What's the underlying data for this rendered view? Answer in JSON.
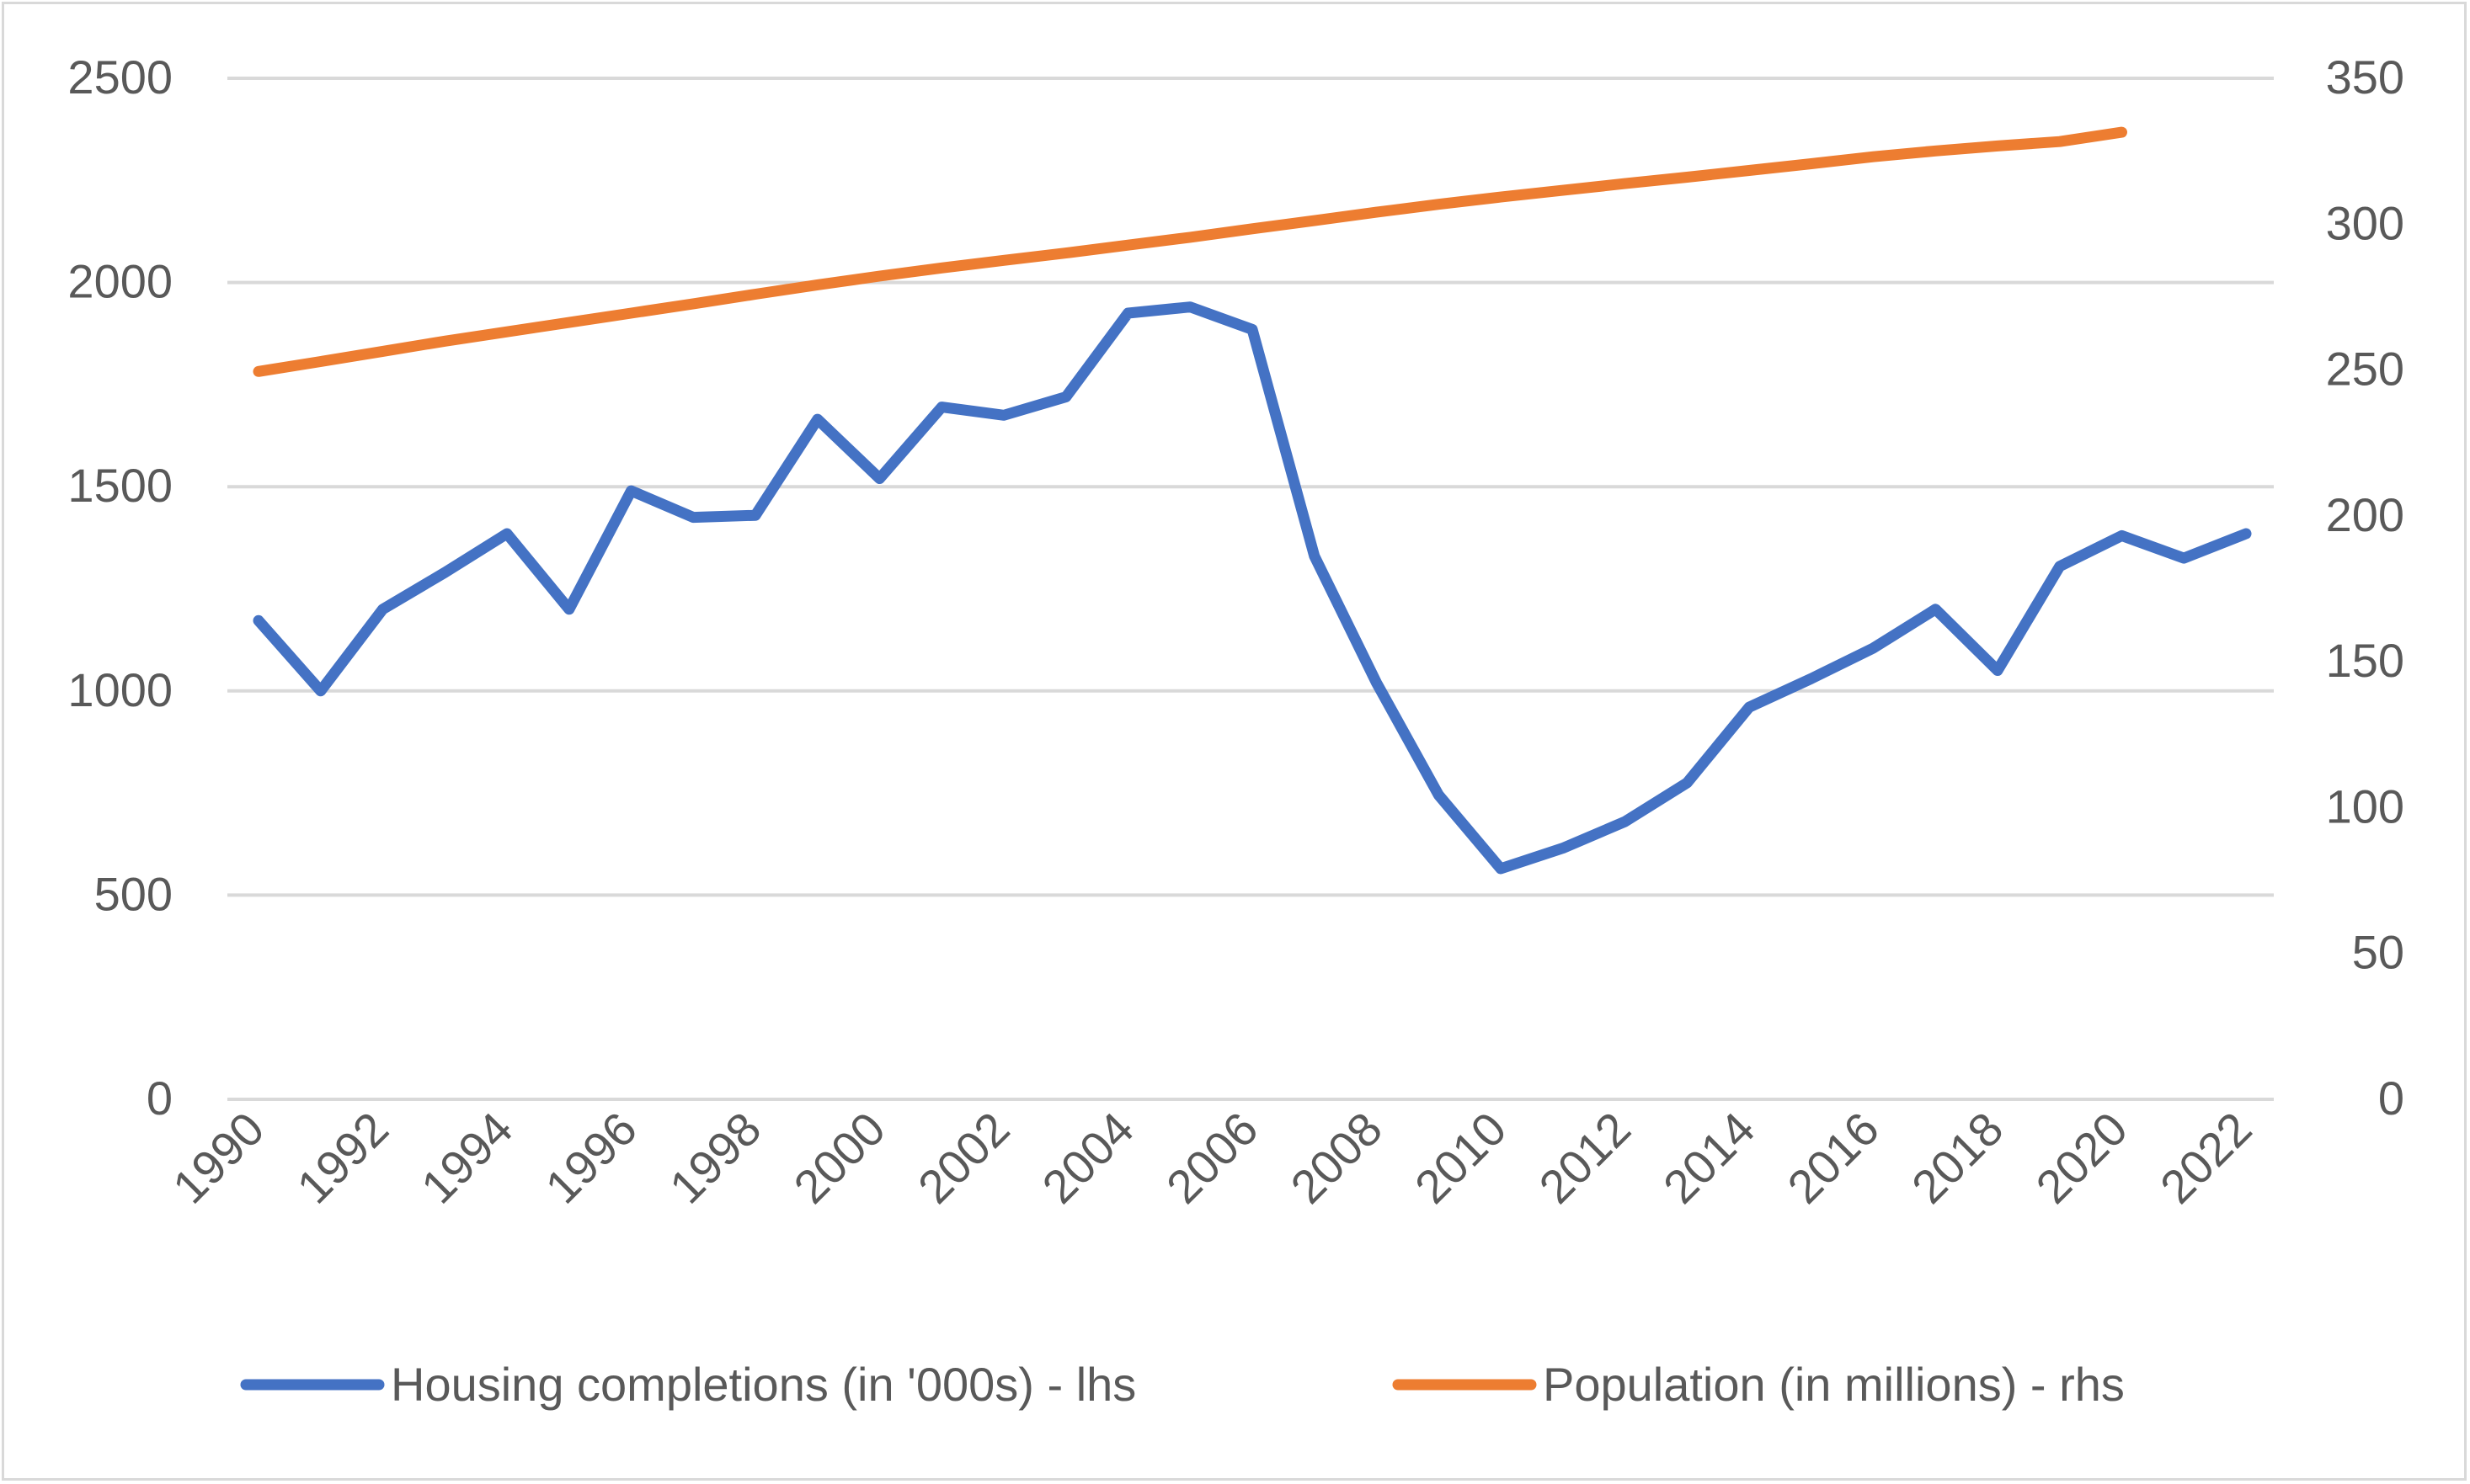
{
  "chart_data": {
    "type": "line",
    "x": [
      1990,
      1991,
      1992,
      1993,
      1994,
      1995,
      1996,
      1997,
      1998,
      1999,
      2000,
      2001,
      2002,
      2003,
      2004,
      2005,
      2006,
      2007,
      2008,
      2009,
      2010,
      2011,
      2012,
      2013,
      2014,
      2015,
      2016,
      2017,
      2018,
      2019,
      2020,
      2021,
      2022
    ],
    "x_tick_labels": [
      "1990",
      "1992",
      "1994",
      "1996",
      "1998",
      "2000",
      "2002",
      "2004",
      "2006",
      "2008",
      "2010",
      "2012",
      "2014",
      "2016",
      "2018",
      "2020",
      "2022"
    ],
    "y_left_ticks": [
      "0",
      "500",
      "1000",
      "1500",
      "2000",
      "2500"
    ],
    "y_right_ticks": [
      "0",
      "50",
      "100",
      "150",
      "200",
      "250",
      "300",
      "350"
    ],
    "ylim_left": [
      0,
      2500
    ],
    "ylim_right": [
      0,
      350
    ],
    "grid": true,
    "legend_position": "bottom",
    "series": [
      {
        "name": "Housing completions (in '000s) - lhs",
        "axis": "left",
        "color": "#4472c4",
        "values": [
          1172,
          1000,
          1200,
          1290,
          1385,
          1200,
          1490,
          1425,
          1430,
          1665,
          1520,
          1695,
          1675,
          1720,
          1925,
          1940,
          1885,
          1330,
          1020,
          745,
          565,
          615,
          680,
          775,
          960,
          1030,
          1105,
          1200,
          1050,
          1305,
          1380,
          1325,
          1385
        ]
      },
      {
        "name": "Population (in millions) - rhs",
        "axis": "right",
        "color": "#ed7d31",
        "values": [
          249.5,
          252.9,
          256.4,
          259.9,
          263.1,
          266.3,
          269.5,
          272.7,
          276.0,
          279.2,
          282.2,
          285.0,
          287.6,
          290.1,
          292.8,
          295.5,
          298.4,
          301.2,
          304.1,
          306.8,
          309.3,
          311.6,
          313.9,
          316.1,
          318.4,
          320.7,
          323.1,
          325.1,
          326.8,
          328.3,
          331.5,
          null,
          null
        ]
      }
    ]
  }
}
